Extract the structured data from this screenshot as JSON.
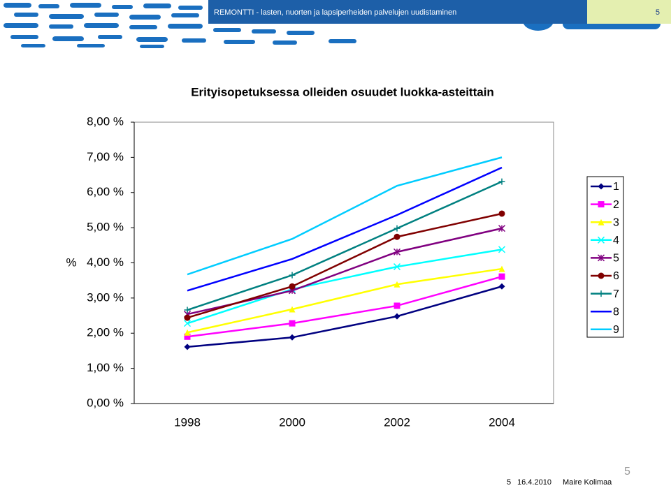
{
  "header": {
    "title": "REMONTTI - lasten, nuorten ja lapsiperheiden palvelujen uudistaminen",
    "page": "5"
  },
  "chart_data": {
    "type": "line",
    "title": "Erityisopetuksessa olleiden osuudet luokka-asteittain",
    "y_label": "%",
    "categories": [
      "1998",
      "2000",
      "2002",
      "2004"
    ],
    "ylim": [
      0,
      8
    ],
    "yticks": [
      {
        "value": 0,
        "label": "0,00 %"
      },
      {
        "value": 1,
        "label": "1,00 %"
      },
      {
        "value": 2,
        "label": "2,00 %"
      },
      {
        "value": 3,
        "label": "3,00 %"
      },
      {
        "value": 4,
        "label": "4,00 %"
      },
      {
        "value": 5,
        "label": "5,00 %"
      },
      {
        "value": 6,
        "label": "6,00 %"
      },
      {
        "value": 7,
        "label": "7,00 %"
      },
      {
        "value": 8,
        "label": "8,00 %"
      }
    ],
    "legend": "right",
    "series": [
      {
        "name": "1",
        "color": "#000080",
        "marker": "diamond",
        "values": [
          1.61,
          1.88,
          2.48,
          3.33
        ]
      },
      {
        "name": "2",
        "color": "#ff00ff",
        "marker": "square",
        "values": [
          1.9,
          2.28,
          2.78,
          3.61
        ]
      },
      {
        "name": "3",
        "color": "#ffff00",
        "marker": "triangle",
        "values": [
          2.02,
          2.68,
          3.39,
          3.83
        ]
      },
      {
        "name": "4",
        "color": "#00ffff",
        "marker": "x",
        "values": [
          2.28,
          3.25,
          3.89,
          4.38
        ]
      },
      {
        "name": "5",
        "color": "#800080",
        "marker": "star",
        "values": [
          2.54,
          3.21,
          4.31,
          4.98
        ]
      },
      {
        "name": "6",
        "color": "#800000",
        "marker": "circle",
        "values": [
          2.44,
          3.33,
          4.74,
          5.4
        ]
      },
      {
        "name": "7",
        "color": "#008080",
        "marker": "plus",
        "values": [
          2.66,
          3.65,
          4.98,
          6.31
        ]
      },
      {
        "name": "8",
        "color": "#0000ff",
        "marker": "none",
        "values": [
          3.21,
          4.11,
          5.36,
          6.71
        ]
      },
      {
        "name": "9",
        "color": "#00ccff",
        "marker": "none",
        "values": [
          3.67,
          4.68,
          6.19,
          7.0
        ]
      }
    ]
  },
  "footer": {
    "slide": "5",
    "number": "5",
    "date": "16.4.2010",
    "author": "Maire Kolimaa"
  }
}
